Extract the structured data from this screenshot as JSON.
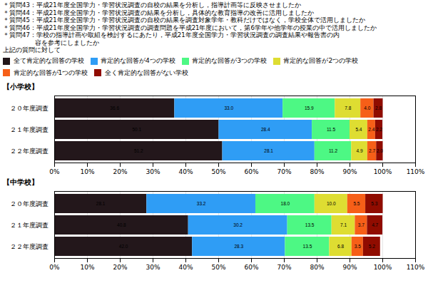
{
  "chart_data": [
    {
      "type": "bar",
      "orientation": "horizontal",
      "stacked": true,
      "data_labels": true,
      "grid": true,
      "legend": "top",
      "title": "【小学校】",
      "annotations": [
        "＊質問43：平成21年度全国学力・学習状況調査の自校の結果を分析し，指導計画等に反映させましたか",
        "＊質問44：平成21年度全国学力・学習状況調査の結果を分析し，具体的な教育指導の改善に活用しましたか",
        "＊質問45：平成21年度全国学力・学習状況調査の自校の結果を調査対象学年・教科だけではなく，学校全体で活用しましたか",
        "＊質問46：平成21年度全国学力・学習状況調査の調査問題を平成21年度において，第6学年や他学年の授業の中で活用しましたか",
        "＊質問47：学校の指導計画や取組を検討するにあたり，平成21年度全国学力・学習状況調査の調査結果や報告書の内",
        "　　　　　容を参考にしましたか",
        "上記の質問に対して"
      ],
      "categories": [
        "２０年度調査",
        "２１年度調査",
        "２２年度調査"
      ],
      "series": [
        {
          "name": "全て肯定的な回答の学校",
          "values": [
            36.6,
            50.1,
            51.2
          ],
          "value_labels": [
            "36.6",
            "50.1",
            "51.2"
          ]
        },
        {
          "name": "肯定的な回答が4つの学校",
          "values": [
            33.0,
            28.4,
            28.1
          ],
          "value_labels": [
            "33.0",
            "28.4",
            "28.1"
          ]
        },
        {
          "name": "肯定的な回答が3つの学校",
          "values": [
            15.9,
            11.5,
            11.2
          ],
          "value_labels": [
            "15.9",
            "11.5",
            "11.2"
          ]
        },
        {
          "name": "肯定的な回答が2つの学校",
          "values": [
            7.8,
            5.4,
            4.9
          ],
          "value_labels": [
            "7.8",
            "5.4",
            "4.9"
          ]
        },
        {
          "name": "肯定的な回答が1つの学校",
          "values": [
            4.0,
            2.4,
            2.7
          ],
          "value_labels": [
            "4.0",
            "2.4",
            "2.7"
          ]
        },
        {
          "name": "全く肯定的な回答がない学校",
          "values": [
            2.8,
            2.2,
            2.0
          ],
          "value_labels": [
            "2.8",
            "2.2",
            "2.0"
          ]
        }
      ],
      "xlim": [
        0,
        110
      ],
      "xticks": [
        {
          "value": 0,
          "label": "0%"
        },
        {
          "value": 10,
          "label": "10%"
        },
        {
          "value": 20,
          "label": "20%"
        },
        {
          "value": 30,
          "label": "30%"
        },
        {
          "value": 40,
          "label": "40%"
        },
        {
          "value": 50,
          "label": "50%"
        },
        {
          "value": 60,
          "label": "60%"
        },
        {
          "value": 70,
          "label": "70%"
        },
        {
          "value": 80,
          "label": "80%"
        },
        {
          "value": 90,
          "label": "90%"
        },
        {
          "value": 100,
          "label": "100%"
        },
        {
          "value": 110,
          "label": "110%"
        }
      ]
    },
    {
      "type": "bar",
      "orientation": "horizontal",
      "stacked": true,
      "data_labels": true,
      "grid": true,
      "title": "【中学校】",
      "categories": [
        "２０年度調査",
        "２１年度調査",
        "２２年度調査"
      ],
      "series": [
        {
          "name": "全て肯定的な回答の学校",
          "values": [
            28.1,
            40.8,
            42.0
          ],
          "value_labels": [
            "28.1",
            "40.8",
            "42.0"
          ]
        },
        {
          "name": "肯定的な回答が4つの学校",
          "values": [
            33.2,
            30.2,
            28.3
          ],
          "value_labels": [
            "33.2",
            "30.2",
            "28.3"
          ]
        },
        {
          "name": "肯定的な回答が3つの学校",
          "values": [
            18.0,
            13.5,
            13.5
          ],
          "value_labels": [
            "18.0",
            "13.5",
            "13.5"
          ]
        },
        {
          "name": "肯定的な回答が2つの学校",
          "values": [
            10.0,
            7.1,
            6.8
          ],
          "value_labels": [
            "10.0",
            "7.1",
            "6.8"
          ]
        },
        {
          "name": "肯定的な回答が1つの学校",
          "values": [
            5.5,
            3.7,
            3.5
          ],
          "value_labels": [
            "5.5",
            "3.7",
            "3.5"
          ]
        },
        {
          "name": "全く肯定的な回答がない学校",
          "values": [
            5.3,
            4.7,
            5.2
          ],
          "value_labels": [
            "5.3",
            "4.7",
            "5.2"
          ]
        }
      ],
      "xlim": [
        0,
        110
      ],
      "xticks": [
        {
          "value": 0,
          "label": "0%"
        },
        {
          "value": 10,
          "label": "10%"
        },
        {
          "value": 20,
          "label": "20%"
        },
        {
          "value": 30,
          "label": "30%"
        },
        {
          "value": 40,
          "label": "40%"
        },
        {
          "value": 50,
          "label": "50%"
        },
        {
          "value": 60,
          "label": "60%"
        },
        {
          "value": 70,
          "label": "70%"
        },
        {
          "value": 80,
          "label": "80%"
        },
        {
          "value": 90,
          "label": "90%"
        },
        {
          "value": 100,
          "label": "100%"
        },
        {
          "value": 110,
          "label": "110%"
        }
      ]
    }
  ]
}
